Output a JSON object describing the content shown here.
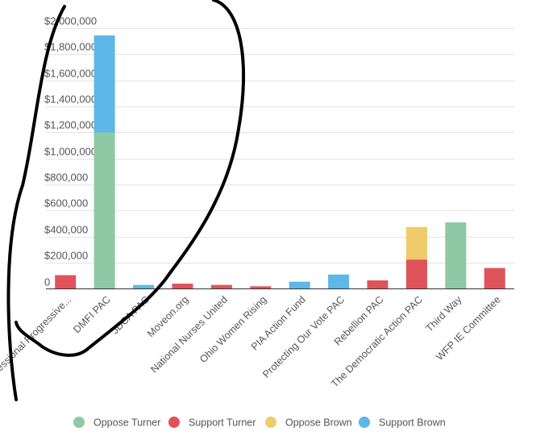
{
  "chart_data": {
    "type": "bar",
    "stacked": true,
    "categories": [
      "Congressional Progressive...",
      "DMFI PAC",
      "JDCA PAC",
      "Moveon.org",
      "National Nurses United",
      "Ohio Women Rising",
      "PIA Action Fund",
      "Protecting Our Vote PAC",
      "Rebellion PAC",
      "The Democratic Action PAC",
      "Third Way",
      "WFP IE Committee"
    ],
    "series": [
      {
        "name": "Oppose Turner",
        "color": "#8ec8a4",
        "values": [
          0,
          1200000,
          0,
          0,
          0,
          0,
          0,
          0,
          0,
          0,
          510000,
          0
        ]
      },
      {
        "name": "Support Turner",
        "color": "#e0535b",
        "values": [
          105000,
          0,
          0,
          40000,
          30000,
          20000,
          0,
          0,
          65000,
          225000,
          0,
          160000
        ]
      },
      {
        "name": "Oppose Brown",
        "color": "#f0cb6b",
        "values": [
          0,
          0,
          0,
          0,
          0,
          0,
          0,
          0,
          0,
          250000,
          0,
          0
        ]
      },
      {
        "name": "Support Brown",
        "color": "#5db7e8",
        "values": [
          0,
          745000,
          30000,
          0,
          0,
          0,
          55000,
          110000,
          0,
          0,
          0,
          0
        ]
      }
    ],
    "yticks": [
      0,
      200000,
      400000,
      600000,
      800000,
      1000000,
      1200000,
      1400000,
      1600000,
      1800000,
      2000000
    ],
    "ytick_labels": [
      "0",
      "$200,000",
      "$400,000",
      "$600,000",
      "$800,000",
      "$1,000,000",
      "$1,200,000",
      "$1,400,000",
      "$1,600,000",
      "$1,800,000",
      "$2,000,000"
    ],
    "ylim": [
      0,
      2000000
    ],
    "grid": true,
    "legend_position": "bottom",
    "title": "",
    "xlabel": "",
    "ylabel": "",
    "annotation": "hand-drawn black marker loop circling DMFI PAC bar"
  }
}
